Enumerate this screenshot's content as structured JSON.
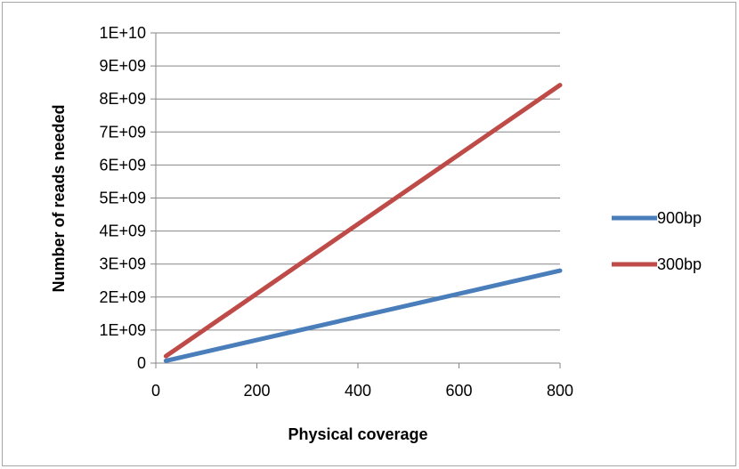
{
  "chart_data": {
    "type": "line",
    "xlabel": "Physical coverage",
    "ylabel": "Number of reads needed",
    "xlim": [
      0,
      800
    ],
    "ylim": [
      0,
      10000000000
    ],
    "x_ticks": [
      0,
      200,
      400,
      600,
      800
    ],
    "x_tick_labels": [
      "0",
      "200",
      "400",
      "600",
      "800"
    ],
    "y_ticks": [
      0,
      1000000000,
      2000000000,
      3000000000,
      4000000000,
      5000000000,
      6000000000,
      7000000000,
      8000000000,
      9000000000,
      10000000000
    ],
    "y_tick_labels": [
      "0",
      "1E+09",
      "2E+09",
      "3E+09",
      "4E+09",
      "5E+09",
      "6E+09",
      "7E+09",
      "8E+09",
      "9E+09",
      "1E+10"
    ],
    "grid": "horizontal",
    "legend_position": "right",
    "series": [
      {
        "name": "900bp",
        "color": "#4a7ebb",
        "x": [
          20,
          800
        ],
        "y": [
          70000000,
          2800000000
        ]
      },
      {
        "name": "300bp",
        "color": "#be4b48",
        "x": [
          20,
          800
        ],
        "y": [
          210000000,
          8420000000
        ]
      }
    ]
  }
}
